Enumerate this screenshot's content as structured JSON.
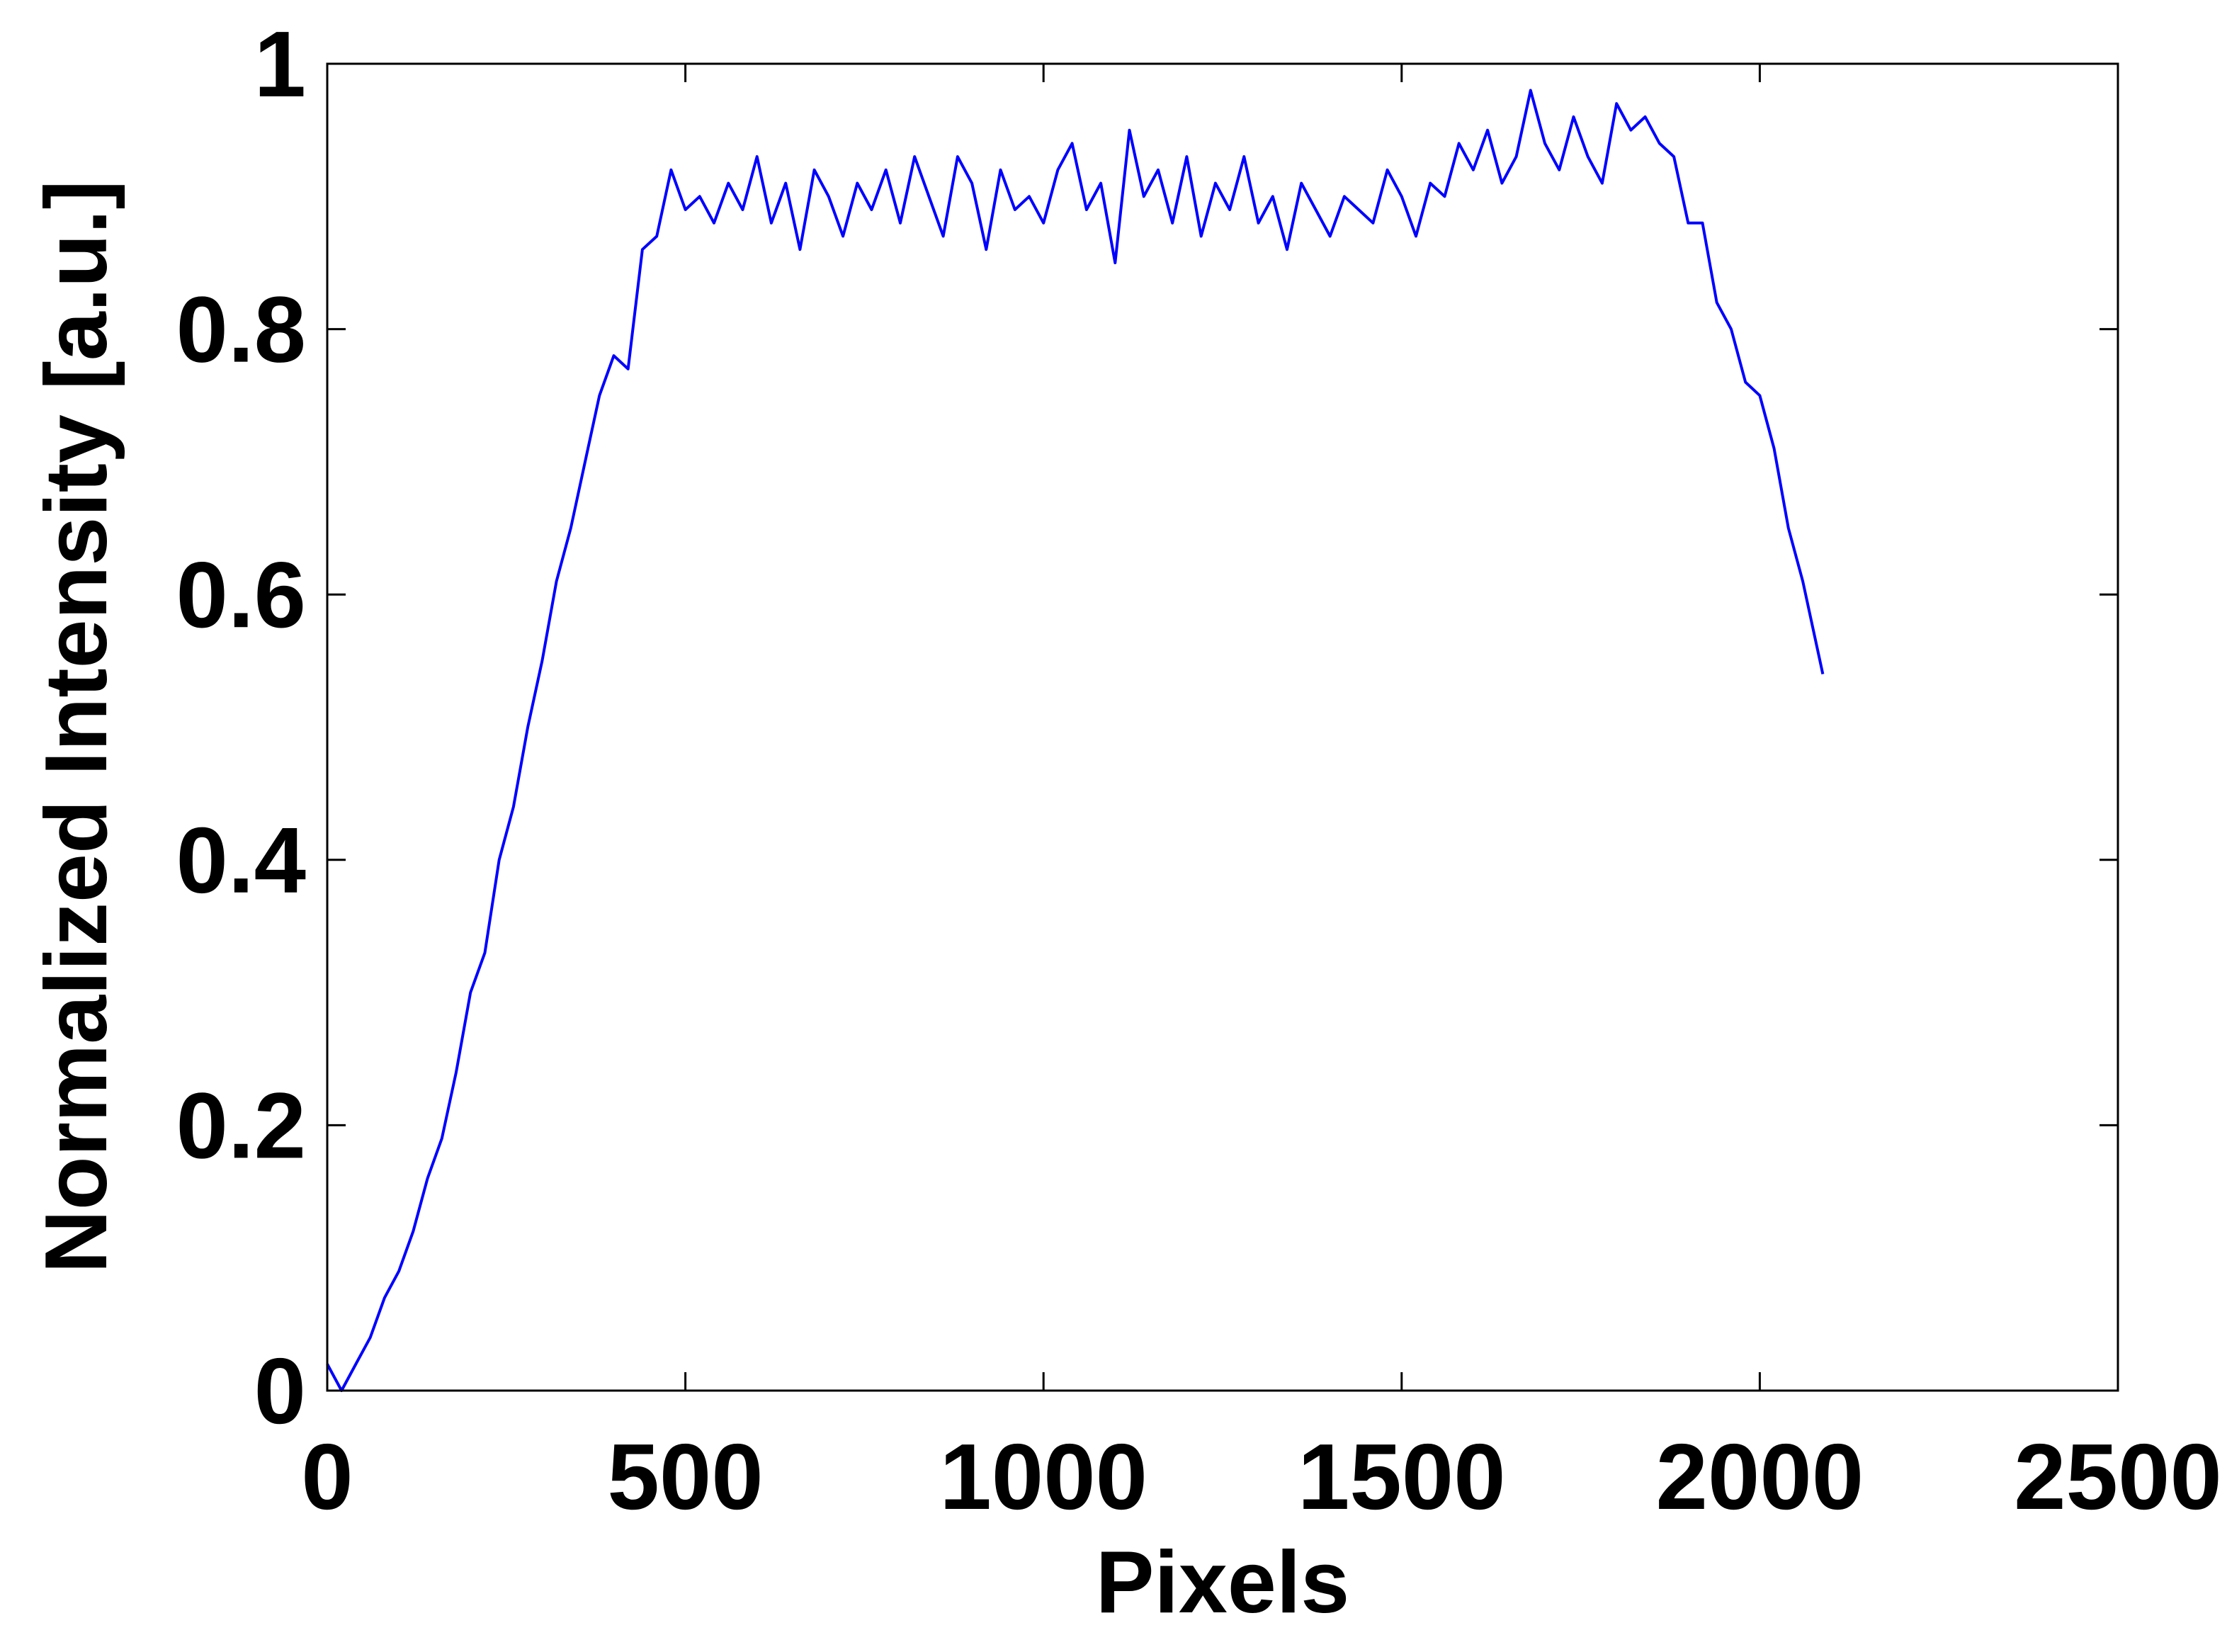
{
  "chart_data": {
    "type": "line",
    "xlabel": "Pixels",
    "ylabel": "Normalized Intensity [a.u.]",
    "xlim": [
      0,
      2500
    ],
    "xticks": [
      0,
      500,
      1000,
      1500,
      2000,
      2500
    ],
    "ylim": [
      0,
      1
    ],
    "yticks": [
      0,
      0.2,
      0.4,
      0.6,
      0.8,
      1
    ],
    "x": [
      0,
      20,
      40,
      60,
      80,
      100,
      120,
      140,
      160,
      180,
      200,
      220,
      240,
      260,
      280,
      300,
      320,
      340,
      360,
      380,
      400,
      420,
      440,
      460,
      480,
      500,
      520,
      540,
      560,
      580,
      600,
      620,
      640,
      660,
      680,
      700,
      720,
      740,
      760,
      780,
      800,
      820,
      840,
      860,
      880,
      900,
      920,
      940,
      960,
      980,
      1000,
      1020,
      1040,
      1060,
      1080,
      1100,
      1120,
      1140,
      1160,
      1180,
      1200,
      1220,
      1240,
      1260,
      1280,
      1300,
      1320,
      1340,
      1360,
      1380,
      1400,
      1420,
      1440,
      1460,
      1480,
      1500,
      1520,
      1540,
      1560,
      1580,
      1600,
      1620,
      1640,
      1660,
      1680,
      1700,
      1720,
      1740,
      1760,
      1780,
      1800,
      1820,
      1840,
      1860,
      1880,
      1900,
      1920,
      1940,
      1960,
      1980,
      2000,
      2020,
      2040,
      2060,
      2080,
      2088
    ],
    "series": [
      {
        "color": "#0000ff",
        "values": [
          0.02,
          0.0,
          0.02,
          0.04,
          0.07,
          0.09,
          0.12,
          0.16,
          0.19,
          0.24,
          0.3,
          0.33,
          0.4,
          0.44,
          0.5,
          0.55,
          0.61,
          0.65,
          0.7,
          0.75,
          0.78,
          0.77,
          0.86,
          0.87,
          0.92,
          0.89,
          0.9,
          0.88,
          0.91,
          0.89,
          0.93,
          0.88,
          0.91,
          0.86,
          0.92,
          0.9,
          0.87,
          0.91,
          0.89,
          0.92,
          0.88,
          0.93,
          0.9,
          0.87,
          0.93,
          0.91,
          0.86,
          0.92,
          0.89,
          0.9,
          0.88,
          0.92,
          0.94,
          0.89,
          0.91,
          0.85,
          0.95,
          0.9,
          0.92,
          0.88,
          0.93,
          0.87,
          0.91,
          0.89,
          0.93,
          0.88,
          0.9,
          0.86,
          0.91,
          0.89,
          0.87,
          0.9,
          0.89,
          0.88,
          0.92,
          0.9,
          0.87,
          0.91,
          0.9,
          0.94,
          0.92,
          0.95,
          0.91,
          0.93,
          0.98,
          0.94,
          0.92,
          0.96,
          0.93,
          0.91,
          0.97,
          0.95,
          0.96,
          0.94,
          0.93,
          0.88,
          0.88,
          0.82,
          0.8,
          0.76,
          0.75,
          0.71,
          0.65,
          0.61,
          0.56,
          0.54
        ]
      }
    ]
  }
}
